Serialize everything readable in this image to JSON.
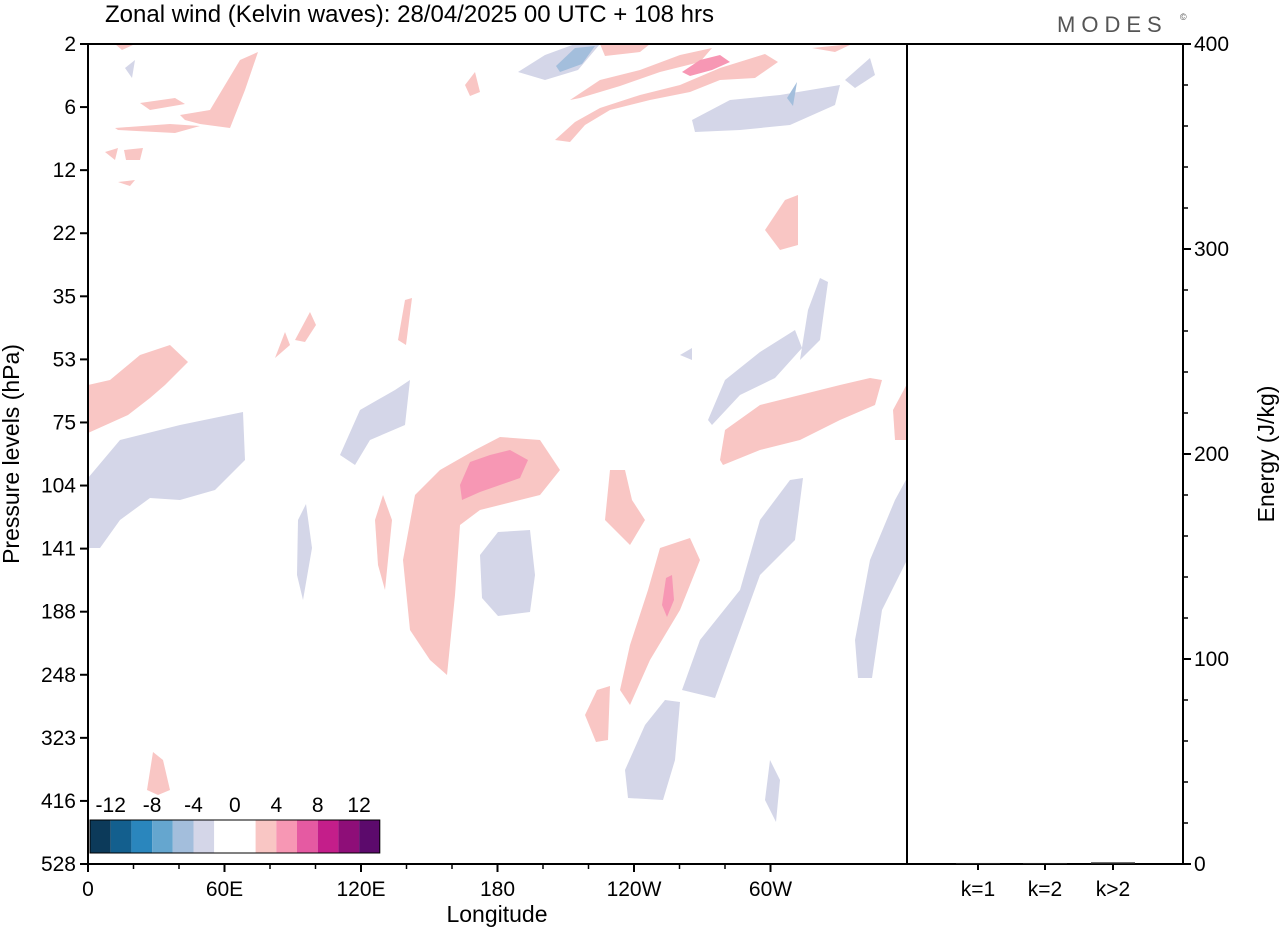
{
  "chart_data": {
    "type": "heatmap",
    "title": "Zonal wind (Kelvin waves):  28/04/2025  00 UTC  + 108 hrs",
    "logo": "MODES",
    "logo_mark": "©",
    "xlabel": "Longitude",
    "ylabel": "Pressure levels (hPa)",
    "x_ticks": [
      "0",
      "60E",
      "120E",
      "180",
      "120W",
      "60W"
    ],
    "y_ticks": [
      "2",
      "6",
      "12",
      "22",
      "35",
      "53",
      "75",
      "104",
      "141",
      "188",
      "248",
      "323",
      "416",
      "528"
    ],
    "colorbar": {
      "labels": [
        "-12",
        "-8",
        "-4",
        "0",
        "4",
        "8",
        "12"
      ],
      "colors": [
        "#0c3a5a",
        "#135f8e",
        "#2a86bd",
        "#65a6cf",
        "#a3bedc",
        "#d4d6e8",
        "#ffffff",
        "#ffffff",
        "#f9c6c4",
        "#f797b4",
        "#e55aa2",
        "#c41e8a",
        "#8e0e78",
        "#5c0a6c"
      ]
    },
    "right_panel": {
      "ylabel": "Energy (J/kg)",
      "ylim": [
        0,
        400
      ],
      "y_ticks": [
        "0",
        "100",
        "200",
        "300",
        "400"
      ],
      "categories": [
        "k=1",
        "k=2",
        "k>2"
      ],
      "values": [
        0.5,
        0.5,
        0.8
      ]
    },
    "colors": {
      "positive": "#f9c6c4",
      "positive_strong": "#f797b4",
      "negative": "#d4d6e8",
      "negative_strong": "#a3bedc"
    }
  }
}
